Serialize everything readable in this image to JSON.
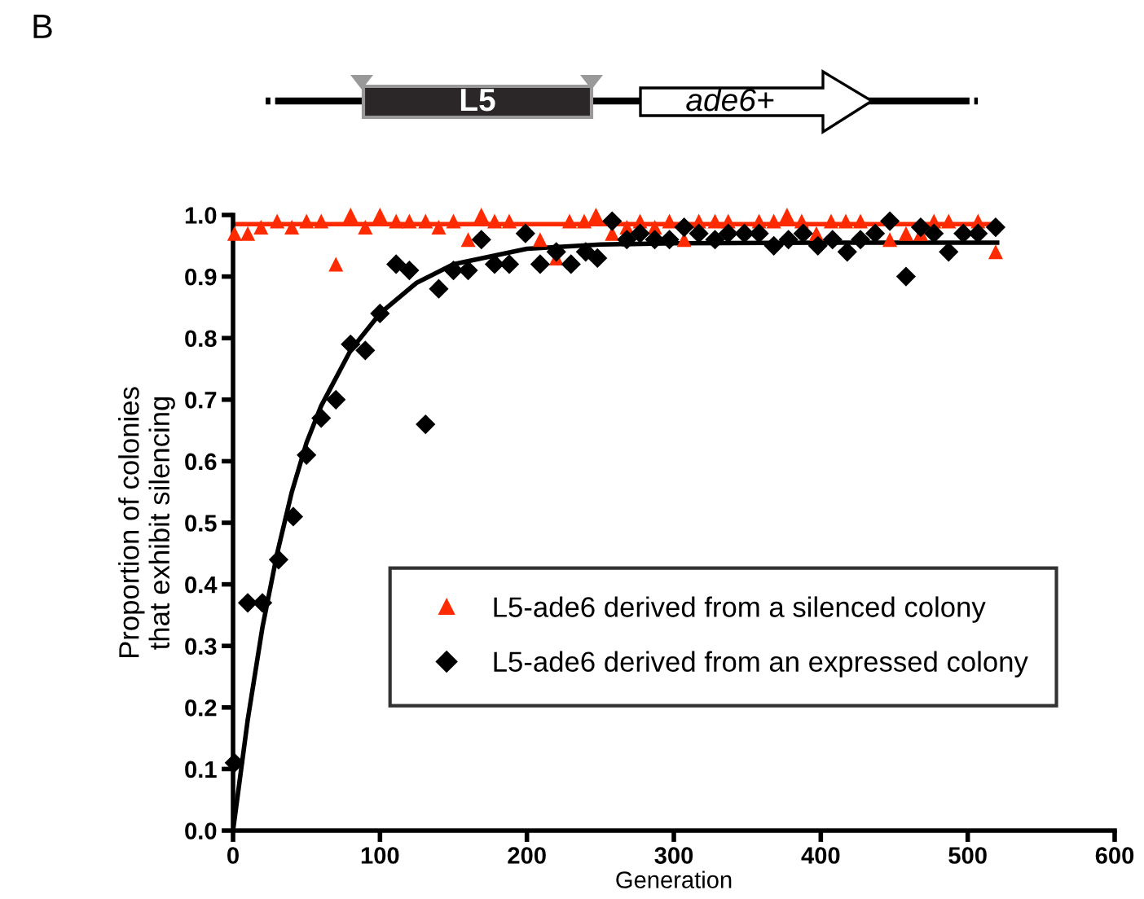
{
  "chart_data": {
    "type": "scatter",
    "xlabel": "Generation",
    "ylabel": "Proportion of colonies\nthat exhibit silencing",
    "annotations": [
      "B",
      "L5",
      "ade6+"
    ],
    "xlim": [
      0,
      600
    ],
    "xticks": [
      0,
      100,
      200,
      300,
      400,
      500,
      600
    ],
    "ylim": [
      0,
      1.0
    ],
    "yticks": [
      {
        "value": 0,
        "label": "0.0"
      },
      {
        "value": 0.1,
        "label": "0.1"
      },
      {
        "value": 0.2,
        "label": "0.2"
      },
      {
        "value": 0.3,
        "label": "0.3"
      },
      {
        "value": 0.4,
        "label": "0.4"
      },
      {
        "value": 0.5,
        "label": "0.5"
      },
      {
        "value": 0.6,
        "label": "0.6"
      },
      {
        "value": 0.7,
        "label": "0.7"
      },
      {
        "value": 0.8,
        "label": "0.8"
      },
      {
        "value": 0.9,
        "label": "0.9"
      },
      {
        "value": 1.0,
        "label": "1.0"
      }
    ],
    "grid": false,
    "legend": "bottom right",
    "series": [
      {
        "name": "L5-ade6 derived from a silenced colony",
        "color": "#ff2a00",
        "marker": "triangle",
        "x": [
          1,
          10,
          19,
          30,
          40,
          50,
          60,
          70,
          80,
          90,
          100,
          111,
          120,
          131,
          140,
          150,
          160,
          169,
          178,
          188,
          198,
          209,
          220,
          229,
          239,
          247,
          258,
          268,
          277,
          287,
          297,
          307,
          317,
          328,
          337,
          358,
          368,
          377,
          387,
          397,
          407,
          417,
          427,
          437,
          447,
          458,
          468,
          477,
          487,
          497,
          507,
          519
        ],
        "values": [
          0.97,
          0.97,
          0.98,
          0.99,
          0.98,
          0.99,
          0.99,
          0.92,
          1.0,
          0.98,
          1.0,
          0.99,
          0.99,
          0.99,
          0.98,
          0.99,
          0.96,
          1.0,
          0.99,
          0.99,
          null,
          0.96,
          0.93,
          0.99,
          0.99,
          1.0,
          0.97,
          0.98,
          0.99,
          0.98,
          0.99,
          0.96,
          0.99,
          0.99,
          0.99,
          0.99,
          0.99,
          1.0,
          0.99,
          0.97,
          0.99,
          0.99,
          0.99,
          null,
          0.96,
          0.97,
          0.97,
          0.99,
          0.99,
          null,
          0.99,
          0.94
        ]
      },
      {
        "name": "L5-ade6 derived from an expressed colony",
        "color": "#000000",
        "marker": "diamond",
        "x": [
          1,
          10,
          20,
          31,
          41,
          50,
          60,
          70,
          80,
          90,
          100,
          111,
          120,
          131,
          140,
          150,
          160,
          169,
          178,
          188,
          199,
          209,
          220,
          230,
          240,
          248,
          258,
          268,
          277,
          287,
          297,
          307,
          317,
          328,
          337,
          348,
          358,
          368,
          378,
          388,
          398,
          408,
          418,
          427,
          437,
          447,
          458,
          468,
          477,
          487,
          497,
          507,
          519
        ],
        "values": [
          0.11,
          0.37,
          0.37,
          0.44,
          0.51,
          0.61,
          0.67,
          0.7,
          0.79,
          0.78,
          0.84,
          0.92,
          0.91,
          0.66,
          0.88,
          0.91,
          0.91,
          0.96,
          0.92,
          0.92,
          0.97,
          0.92,
          0.94,
          0.92,
          0.94,
          0.93,
          0.99,
          0.96,
          0.97,
          0.96,
          0.96,
          0.98,
          0.97,
          0.96,
          0.97,
          0.97,
          0.97,
          0.95,
          0.96,
          0.97,
          0.95,
          0.96,
          0.94,
          0.96,
          0.97,
          0.99,
          0.9,
          0.98,
          0.97,
          0.94,
          0.97,
          0.97,
          0.98
        ]
      },
      {
        "type": "line",
        "color": "#ff2a00",
        "marker": "none",
        "x": [
          0,
          520
        ],
        "values": [
          0.985,
          0.985
        ]
      },
      {
        "type": "line",
        "color": "#000000",
        "marker": "none",
        "x": [
          0,
          10,
          20,
          30,
          40,
          50,
          60,
          80,
          100,
          125,
          150,
          200,
          250,
          300,
          400,
          520
        ],
        "values": [
          0,
          0.18,
          0.33,
          0.45,
          0.55,
          0.63,
          0.69,
          0.78,
          0.84,
          0.89,
          0.92,
          0.945,
          0.952,
          0.954,
          0.955,
          0.955
        ]
      }
    ]
  }
}
